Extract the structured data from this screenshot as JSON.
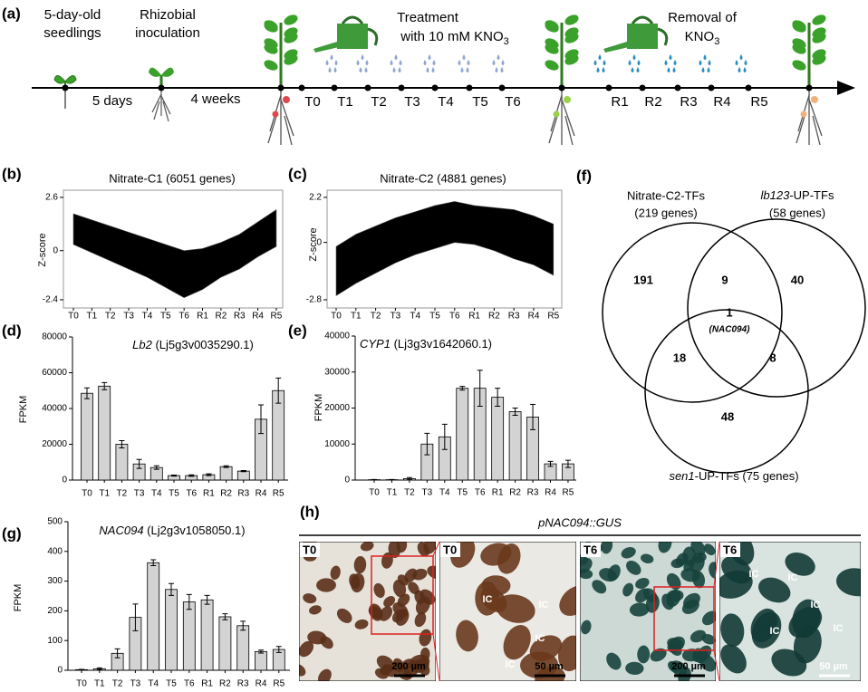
{
  "figure": {
    "panel_a": {
      "label": "(a)",
      "seedling": [
        "5-day-old",
        "seedlings"
      ],
      "inoculation": [
        "Rhizobial",
        "inoculation"
      ],
      "interval1": "5 days",
      "interval2": "4 weeks",
      "treatment": [
        "Treatment",
        "with 10 mM KNO"
      ],
      "treatment_sub": "3",
      "removal": [
        "Removal of",
        "KNO"
      ],
      "removal_sub": "3",
      "treatment_points": [
        "T0",
        "T1",
        "T2",
        "T3",
        "T4",
        "T5",
        "T6"
      ],
      "removal_points": [
        "R1",
        "R2",
        "R3",
        "R4",
        "R5"
      ]
    },
    "panel_f": {
      "label": "(f)",
      "sets": [
        {
          "name": "Nitrate-C2-TFs",
          "size": "(219 genes)"
        },
        {
          "name_italic": "lb123",
          "name_rest": "-UP-TFs",
          "size": "(58 genes)"
        },
        {
          "name_italic": "sen1",
          "name_rest": "-UP-TFs (75 genes)"
        }
      ],
      "regions": [
        191,
        9,
        40,
        1,
        18,
        8,
        48
      ],
      "core_gene": "(NAC094)"
    },
    "panel_h": {
      "label": "(h)",
      "construct": "pNAC094::GUS",
      "images": [
        {
          "time": "T0",
          "scale": "200 µm",
          "labels": []
        },
        {
          "time": "T0",
          "scale": "50 µm",
          "labels": [
            "IC",
            "IC",
            "IC",
            "IC"
          ]
        },
        {
          "time": "T6",
          "scale": "200 µm",
          "labels": []
        },
        {
          "time": "T6",
          "scale": "50 µm",
          "labels": [
            "IC",
            "IC",
            "IC",
            "IC",
            "IC"
          ]
        }
      ]
    }
  },
  "chart_data": [
    {
      "type": "band",
      "label": "(b)",
      "title": "Nitrate-C1 (6051 genes)",
      "ylabel": "Z-score",
      "categories": [
        "T0",
        "T1",
        "T2",
        "T3",
        "T4",
        "T5",
        "T6",
        "R1",
        "R2",
        "R3",
        "R4",
        "R5"
      ],
      "upper": [
        1.8,
        1.5,
        1.2,
        0.9,
        0.6,
        0.3,
        0.0,
        0.1,
        0.4,
        0.8,
        1.4,
        2.0
      ],
      "lower": [
        0.3,
        -0.1,
        -0.5,
        -0.9,
        -1.3,
        -1.8,
        -2.3,
        -1.9,
        -1.3,
        -0.9,
        -0.3,
        0.2
      ],
      "color": "#000000",
      "ylim": [
        -2.8,
        2.95
      ],
      "yticks": [
        2.6,
        0,
        -2.4
      ]
    },
    {
      "type": "band",
      "label": "(c)",
      "title": "Nitrate-C2 (4881 genes)",
      "ylabel": "Z-score",
      "categories": [
        "T0",
        "T1",
        "T2",
        "T3",
        "T4",
        "T5",
        "T6",
        "R1",
        "R2",
        "R3",
        "R4",
        "R5"
      ],
      "upper": [
        -0.2,
        0.4,
        0.8,
        1.2,
        1.5,
        1.8,
        2.0,
        1.8,
        1.7,
        1.6,
        1.3,
        0.9
      ],
      "lower": [
        -2.6,
        -2.0,
        -1.5,
        -1.0,
        -0.6,
        -0.3,
        0.0,
        -0.1,
        -0.4,
        -0.8,
        -1.1,
        -1.6
      ],
      "color": "#000000",
      "ylim": [
        -3.2,
        2.55
      ],
      "yticks": [
        2.2,
        0,
        -2.8
      ]
    },
    {
      "type": "bar",
      "label": "(d)",
      "gene": "Lb2",
      "gene_id": " (Lj5g3v0035290.1)",
      "ylabel": "FPKM",
      "categories": [
        "T0",
        "T1",
        "T2",
        "T3",
        "T4",
        "T5",
        "T6",
        "R1",
        "R2",
        "R3",
        "R4",
        "R5"
      ],
      "values": [
        48500,
        52500,
        20000,
        9000,
        7000,
        2500,
        2500,
        3000,
        7500,
        5000,
        34000,
        50000
      ],
      "errors": [
        3000,
        2000,
        2000,
        2500,
        1000,
        300,
        400,
        500,
        500,
        300,
        8000,
        7000
      ],
      "color": "#d3d3d3",
      "ylim": [
        0,
        80000
      ],
      "yticks": [
        0,
        20000,
        40000,
        60000,
        80000
      ]
    },
    {
      "type": "bar",
      "label": "(e)",
      "gene": "CYP1",
      "gene_id": " (Lj3g3v1642060.1)",
      "ylabel": "FPKM",
      "categories": [
        "T0",
        "T1",
        "T2",
        "T3",
        "T4",
        "T5",
        "T6",
        "R1",
        "R2",
        "R3",
        "R4",
        "R5"
      ],
      "values": [
        100,
        100,
        400,
        10000,
        12000,
        25500,
        25500,
        23000,
        19000,
        17500,
        4500,
        4500
      ],
      "errors": [
        50,
        50,
        300,
        3000,
        3500,
        500,
        5000,
        2500,
        1000,
        3500,
        700,
        1000
      ],
      "color": "#d3d3d3",
      "ylim": [
        0,
        40000
      ],
      "yticks": [
        0,
        10000,
        20000,
        30000,
        40000
      ]
    },
    {
      "type": "bar",
      "label": "(g)",
      "gene": "NAC094",
      "gene_id": " (Lj2g3v1058050.1)",
      "ylabel": "FPKM",
      "categories": [
        "T0",
        "T1",
        "T2",
        "T3",
        "T4",
        "T5",
        "T6",
        "R1",
        "R2",
        "R3",
        "R4",
        "R5"
      ],
      "values": [
        2,
        5,
        57,
        178,
        362,
        272,
        230,
        237,
        180,
        150,
        63,
        70
      ],
      "errors": [
        1,
        3,
        15,
        45,
        10,
        20,
        25,
        15,
        10,
        15,
        5,
        10
      ],
      "color": "#d3d3d3",
      "ylim": [
        0,
        500
      ],
      "yticks": [
        0,
        100,
        200,
        300,
        400,
        500
      ]
    }
  ]
}
